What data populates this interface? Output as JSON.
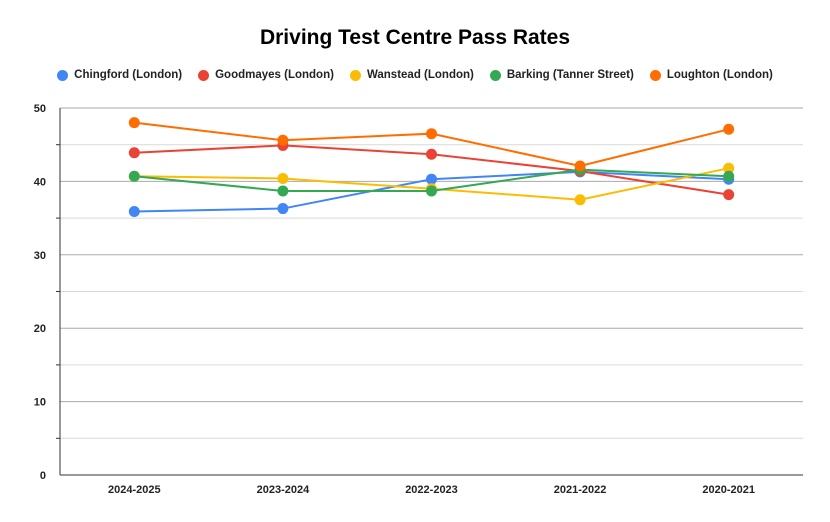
{
  "chart_data": {
    "type": "line",
    "title": "Driving Test Centre Pass Rates",
    "categories": [
      "2024-2025",
      "2023-2024",
      "2022-2023",
      "2021-2022",
      "2020-2021"
    ],
    "ylim": [
      0,
      50
    ],
    "yticks": [
      0,
      10,
      20,
      30,
      40,
      50
    ],
    "grid": true,
    "legend_position": "top",
    "series": [
      {
        "name": "Chingford (London)",
        "color": "#4285f4",
        "values": [
          35.9,
          36.3,
          40.3,
          41.3,
          40.3
        ]
      },
      {
        "name": "Goodmayes (London)",
        "color": "#ea4335",
        "values": [
          43.9,
          44.9,
          43.7,
          41.4,
          38.2
        ]
      },
      {
        "name": "Wanstead (London)",
        "color": "#fbbc04",
        "values": [
          40.7,
          40.4,
          39.0,
          37.5,
          41.8
        ]
      },
      {
        "name": "Barking (Tanner Street)",
        "color": "#34a853",
        "values": [
          40.7,
          38.7,
          38.7,
          41.6,
          40.7
        ]
      },
      {
        "name": "Loughton (London)",
        "color": "#ff6d01",
        "values": [
          48.0,
          45.6,
          46.5,
          42.1,
          47.1
        ]
      }
    ]
  }
}
